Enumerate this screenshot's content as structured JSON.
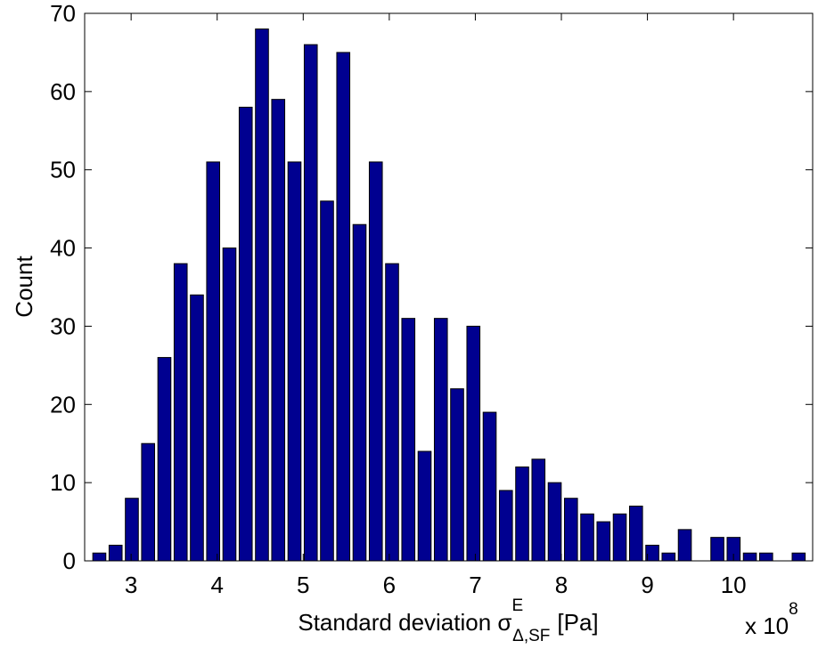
{
  "chart_data": {
    "type": "histogram",
    "xlabel": {
      "text": "Standard deviation σ",
      "sup": "E",
      "sub": "Δ,SF",
      "unit": "[Pa]"
    },
    "ylabel": "Count",
    "x_multiplier": {
      "base": "x 10",
      "exponent": "8"
    },
    "bins": [
      2.536,
      2.725,
      2.914,
      3.103,
      3.292,
      3.481,
      3.67,
      3.859,
      4.048,
      4.237,
      4.426,
      4.615,
      4.804,
      4.993,
      5.182,
      5.371,
      5.56,
      5.749,
      5.938,
      6.127,
      6.316,
      6.505,
      6.694,
      6.883,
      7.072,
      7.261,
      7.45,
      7.639,
      7.828,
      8.017,
      8.206,
      8.395,
      8.584,
      8.773,
      8.962,
      9.151,
      9.34,
      9.529,
      9.718,
      9.907,
      10.096,
      10.285,
      10.474,
      10.663,
      10.852
    ],
    "values": [
      1,
      2,
      8,
      15,
      26,
      38,
      34,
      51,
      40,
      58,
      68,
      59,
      51,
      66,
      46,
      65,
      43,
      51,
      38,
      31,
      14,
      31,
      22,
      30,
      19,
      9,
      12,
      13,
      10,
      8,
      6,
      5,
      6,
      7,
      2,
      1,
      4,
      0,
      3,
      3,
      1,
      1,
      0,
      1
    ],
    "color": "#000090",
    "xlim": [
      2.46,
      10.92
    ],
    "xticks": [
      3,
      4,
      5,
      6,
      7,
      8,
      9,
      10
    ],
    "ylim": [
      0,
      70
    ],
    "yticks": [
      0,
      10,
      20,
      30,
      40,
      50,
      60,
      70
    ]
  }
}
